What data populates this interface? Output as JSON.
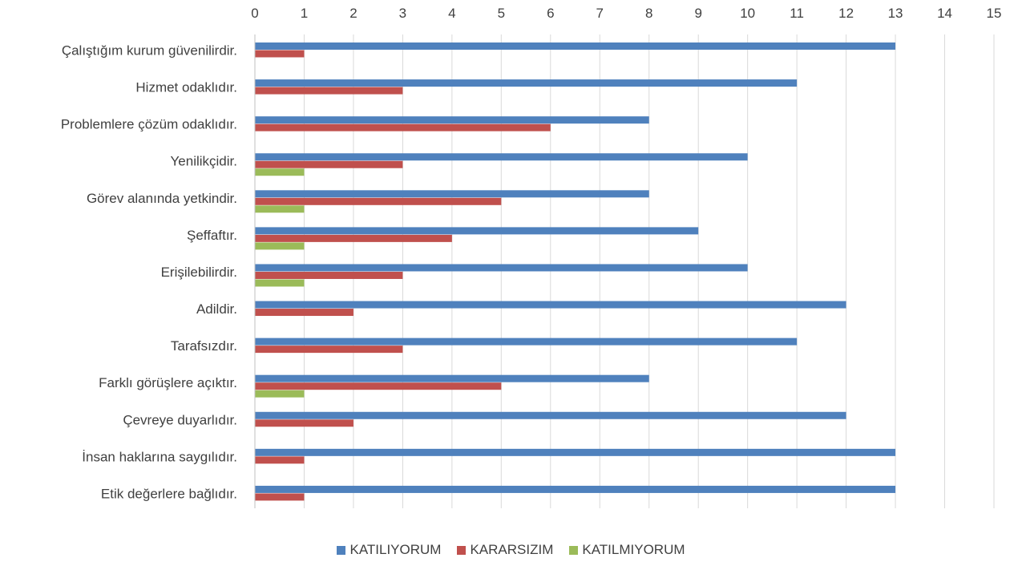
{
  "chart_data": {
    "type": "bar",
    "orientation": "horizontal",
    "categories": [
      "Çalıştığım kurum güvenilirdir.",
      "Hizmet odaklıdır.",
      "Problemlere çözüm odaklıdır.",
      "Yenilikçidir.",
      "Görev alanında yetkindir.",
      "Şeffaftır.",
      "Erişilebilirdir.",
      "Adildir.",
      "Tarafsızdır.",
      "Farklı görüşlere açıktır.",
      "Çevreye duyarlıdır.",
      "İnsan haklarına saygılıdır.",
      "Etik değerlere bağlıdır."
    ],
    "series": [
      {
        "name": "KATILIYORUM",
        "color": "#4f81bd",
        "values": [
          13,
          11,
          8,
          10,
          8,
          9,
          10,
          12,
          11,
          8,
          12,
          13,
          13
        ]
      },
      {
        "name": "KARARSIZIM",
        "color": "#c0504d",
        "values": [
          1,
          3,
          6,
          3,
          5,
          4,
          3,
          2,
          3,
          5,
          2,
          1,
          1
        ]
      },
      {
        "name": "KATILMIYORUM",
        "color": "#9bbb59",
        "values": [
          0,
          0,
          0,
          1,
          1,
          1,
          1,
          0,
          0,
          1,
          0,
          0,
          0
        ]
      }
    ],
    "xlim": [
      0,
      15
    ],
    "xticks": [
      "0",
      "1",
      "2",
      "3",
      "4",
      "5",
      "6",
      "7",
      "8",
      "9",
      "10",
      "11",
      "12",
      "13",
      "14",
      "15"
    ],
    "axis_position": "top",
    "grid": "vertical",
    "legend_position": "bottom",
    "title": "",
    "xlabel": "",
    "ylabel": ""
  }
}
